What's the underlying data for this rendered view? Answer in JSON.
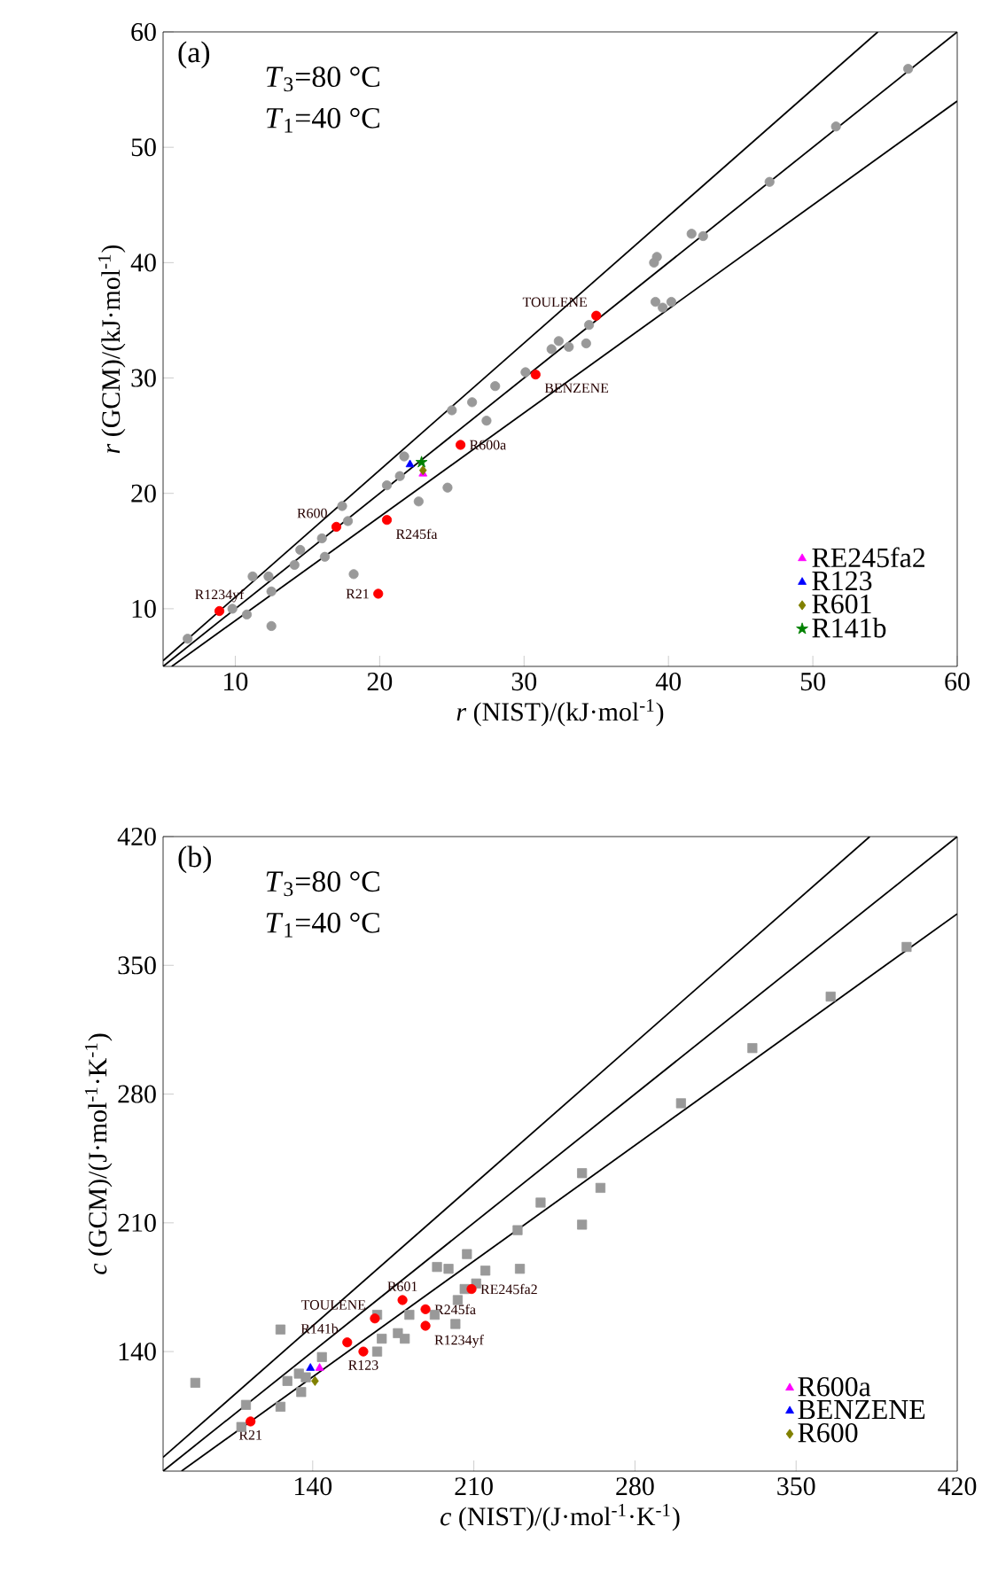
{
  "chart_data": [
    {
      "type": "scatter",
      "xlabel": "*r* (NIST)/(kJ·mol$^{-1}$)",
      "ylabel": "*r* (GCM)/(kJ·mol$^{-1}$)",
      "xlim": [
        5,
        60
      ],
      "ylim": [
        5,
        60
      ],
      "xticks": [
        10,
        20,
        30,
        40,
        50,
        60
      ],
      "yticks": [
        10,
        20,
        30,
        40,
        50,
        60
      ],
      "legend": "bottom right",
      "annotations": [
        "(a)",
        "*T*$_{3}$=80 °C",
        "*T*$_{1}$=40 °C",
        {
          "text": "TOULENE",
          "x": 35.0,
          "y": 35.4
        },
        {
          "text": "BENZENE",
          "x": 30.8,
          "y": 30.3
        },
        {
          "text": "R600a",
          "x": 25.6,
          "y": 24.2
        },
        {
          "text": "R600",
          "x": 17.0,
          "y": 17.1
        },
        {
          "text": "R245fa",
          "x": 20.5,
          "y": 17.7
        },
        {
          "text": "R21",
          "x": 19.9,
          "y": 11.3
        },
        {
          "text": "R1234yf",
          "x": 8.9,
          "y": 9.8
        }
      ],
      "series": [
        {
          "marker": "circle",
          "color": "#999999",
          "x": [
            6.7,
            9.8,
            10.8,
            11.2,
            12.3,
            12.5,
            12.5,
            14.1,
            14.5,
            16.0,
            16.2,
            17.4,
            17.8,
            18.2,
            20.5,
            21.4,
            21.7,
            22.7,
            24.7,
            25.0,
            26.4,
            27.4,
            28.0,
            30.1,
            31.9,
            32.4,
            33.1,
            34.3,
            34.5,
            39.0,
            39.2,
            39.1,
            39.6,
            40.2,
            41.6,
            42.4,
            47.0,
            51.6,
            56.6
          ],
          "values": [
            7.4,
            10.0,
            9.5,
            12.8,
            12.8,
            11.5,
            8.5,
            13.8,
            15.1,
            16.1,
            14.5,
            18.9,
            17.6,
            13.0,
            20.7,
            21.5,
            23.2,
            19.3,
            20.5,
            27.2,
            27.9,
            26.3,
            29.3,
            30.5,
            32.5,
            33.2,
            32.7,
            33.0,
            34.6,
            40.0,
            40.5,
            36.6,
            36.1,
            36.6,
            42.5,
            42.3,
            47.0,
            51.8,
            56.8
          ]
        },
        {
          "marker": "circle",
          "color": "#ff0000",
          "x": [
            8.9,
            17.0,
            20.5,
            19.9,
            25.6,
            30.8,
            35.0
          ],
          "values": [
            9.8,
            17.1,
            17.7,
            11.3,
            24.2,
            30.3,
            35.4
          ]
        },
        {
          "name": "RE245fa2",
          "marker": "triangle",
          "color": "#ff00ff",
          "x": [
            23.0
          ],
          "values": [
            21.7
          ]
        },
        {
          "name": "R123",
          "marker": "triangle",
          "color": "#0000ff",
          "x": [
            22.1
          ],
          "values": [
            22.5
          ]
        },
        {
          "name": "R601",
          "marker": "diamond",
          "color": "#808000",
          "x": [
            23.0
          ],
          "values": [
            22.0
          ]
        },
        {
          "name": "R141b",
          "marker": "star",
          "color": "#008000",
          "x": [
            22.9
          ],
          "values": [
            22.7
          ]
        },
        {
          "type": "line",
          "line_style": "solid",
          "color": "#000000",
          "x": [
            5,
            60
          ],
          "values": [
            5,
            60
          ]
        },
        {
          "type": "line",
          "line_style": "solid",
          "color": "#000000",
          "x": [
            5,
            54.5
          ],
          "values": [
            5.5,
            60
          ]
        },
        {
          "type": "line",
          "line_style": "solid",
          "color": "#000000",
          "x": [
            5.6,
            60
          ],
          "values": [
            5.0,
            54.0
          ]
        }
      ]
    },
    {
      "type": "scatter",
      "xlabel": "*c* (NIST)/(J·mol$^{-1}$·K$^{-1}$)",
      "ylabel": "*c* (GCM)/(J·mol$^{-1}$·K$^{-1}$)",
      "xlim": [
        75,
        420
      ],
      "ylim": [
        75,
        420
      ],
      "xticks": [
        140,
        210,
        280,
        350,
        420
      ],
      "yticks": [
        140,
        210,
        280,
        350,
        420
      ],
      "legend": "bottom right",
      "annotations": [
        "(b)",
        "*T*$_{3}$=80 °C",
        "*T*$_{1}$=40 °C",
        {
          "text": "TOULENE",
          "x": 167,
          "y": 158
        },
        {
          "text": "R601",
          "x": 179,
          "y": 168
        },
        {
          "text": "RE245fa2",
          "x": 209,
          "y": 174
        },
        {
          "text": "R245fa",
          "x": 189,
          "y": 163
        },
        {
          "text": "R1234yf",
          "x": 189,
          "y": 154
        },
        {
          "text": "R123",
          "x": 162,
          "y": 140
        },
        {
          "text": "R141b",
          "x": 155,
          "y": 145
        },
        {
          "text": "R21",
          "x": 113,
          "y": 102
        }
      ],
      "series": [
        {
          "marker": "square",
          "color": "#999999",
          "x": [
            89,
            109,
            111,
            126,
            129,
            134,
            135,
            137,
            126,
            144,
            168,
            170,
            168,
            177,
            180,
            182,
            193,
            194,
            199,
            202,
            203,
            206,
            207,
            211,
            215,
            230,
            229,
            239,
            257,
            265,
            257,
            300,
            331,
            365,
            398
          ],
          "values": [
            123,
            99,
            111,
            110,
            124,
            128,
            118,
            126,
            152,
            137,
            160,
            147,
            140,
            150,
            147,
            160,
            160,
            186,
            185,
            155,
            168,
            174,
            193,
            177,
            184,
            185,
            206,
            221,
            237,
            229,
            209,
            275,
            305,
            333,
            360
          ]
        },
        {
          "marker": "circle",
          "color": "#ff0000",
          "x": [
            113,
            162,
            155,
            167,
            179,
            189,
            189,
            209
          ],
          "values": [
            102,
            140,
            145,
            158,
            168,
            163,
            154,
            174
          ]
        },
        {
          "name": "R600a",
          "marker": "triangle",
          "color": "#ff00ff",
          "x": [
            143
          ],
          "values": [
            131
          ]
        },
        {
          "name": "BENZENE",
          "marker": "triangle",
          "color": "#0000ff",
          "x": [
            139
          ],
          "values": [
            131
          ]
        },
        {
          "name": "R600",
          "marker": "diamond",
          "color": "#808000",
          "x": [
            141
          ],
          "values": [
            124
          ]
        },
        {
          "type": "line",
          "line_style": "solid",
          "color": "#000000",
          "x": [
            75,
            420
          ],
          "values": [
            75,
            420
          ]
        },
        {
          "type": "line",
          "line_style": "solid",
          "color": "#000000",
          "x": [
            75,
            382
          ],
          "values": [
            82.5,
            420
          ]
        },
        {
          "type": "line",
          "line_style": "solid",
          "color": "#000000",
          "x": [
            83,
            420
          ],
          "values": [
            75,
            378
          ]
        }
      ]
    }
  ]
}
